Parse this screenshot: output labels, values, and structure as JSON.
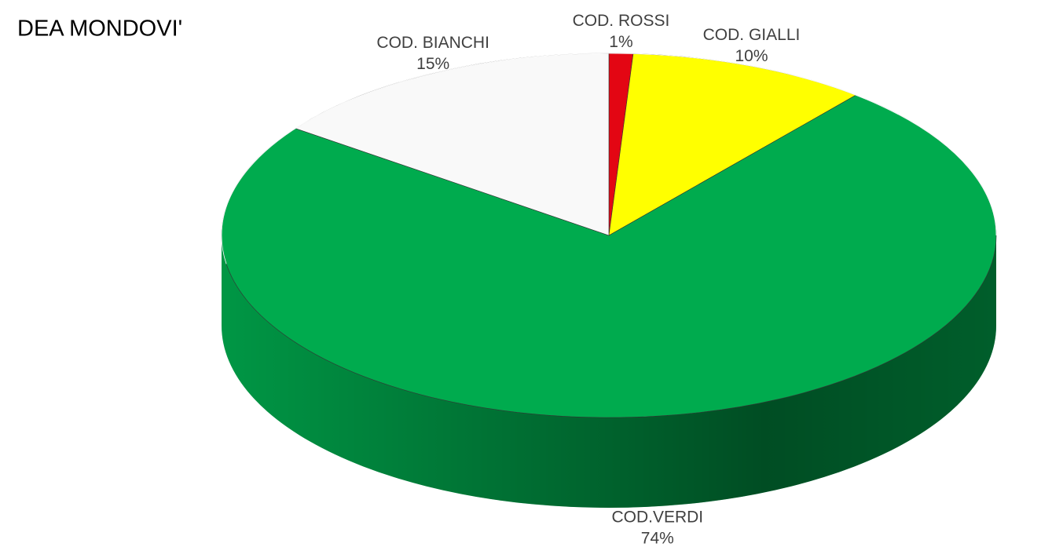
{
  "chart_data": {
    "type": "pie",
    "title": "DEA MONDOVI'",
    "categories": [
      "COD. ROSSI",
      "COD. GIALLI",
      "COD.VERDI",
      "COD. BIANCHI"
    ],
    "values": [
      1,
      10,
      74,
      15
    ],
    "value_labels": [
      "1%",
      "10%",
      "74%",
      "15%"
    ],
    "colors": [
      "#e30613",
      "#ffff00",
      "#00ab4e",
      "#f9f9f9"
    ]
  }
}
